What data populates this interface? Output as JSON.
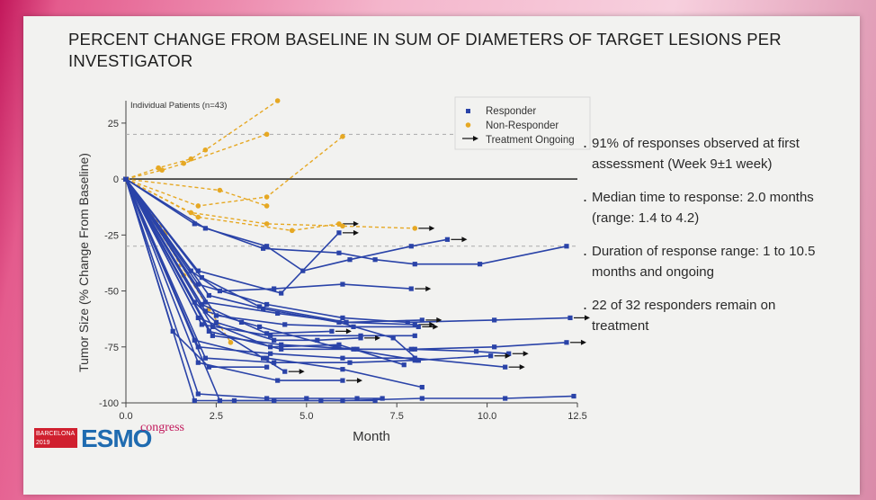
{
  "slide": {
    "title": "PERCENT CHANGE FROM BASELINE IN SUM OF DIAMETERS OF TARGET LESIONS PER INVESTIGATOR",
    "bullets": [
      "91% of responses observed at first assessment (Week 9±1 week)",
      "Median time to response: 2.0 months (range: 1.4 to 4.2)",
      "Duration of response range: 1 to 10.5 months and ongoing",
      "22 of 32 responders remain on treatment"
    ],
    "logo": {
      "city": "BARCELONA",
      "year": "2019",
      "brand": "ESMO",
      "suffix": "congress"
    }
  },
  "colors": {
    "responder": "#2a43a8",
    "non_responder": "#e6a823",
    "reference": "#111111",
    "dashed": "#aaaaaa"
  },
  "chart_data": {
    "type": "line",
    "title": "PERCENT CHANGE FROM BASELINE IN SUM OF DIAMETERS OF TARGET LESIONS PER INVESTIGATOR",
    "annotation": "Individual Patients (n=43)",
    "xlabel": "Month",
    "ylabel": "Tumor Size (% Change From Baseline)",
    "xlim": [
      0,
      12.5
    ],
    "ylim": [
      -100,
      35
    ],
    "xticks": [
      "0.0",
      "2.5",
      "5.0",
      "7.5",
      "10.0",
      "12.5"
    ],
    "yticks": [
      "25",
      "0",
      "-25",
      "-50",
      "-75",
      "-100"
    ],
    "reference_lines": [
      {
        "y": 0,
        "style": "solid"
      },
      {
        "y": 20,
        "style": "dashed"
      },
      {
        "y": -30,
        "style": "dashed"
      }
    ],
    "legend": {
      "position": "top-right",
      "entries": [
        "Responder",
        "Non-Responder",
        "Treatment Ongoing"
      ]
    },
    "series": [
      {
        "group": "non-responder",
        "x": [
          0,
          0.9,
          1.8,
          2.2,
          4.2
        ],
        "y": [
          0,
          5,
          9,
          13,
          35
        ],
        "ongoing": false
      },
      {
        "group": "non-responder",
        "x": [
          0,
          1.0,
          1.6,
          3.9
        ],
        "y": [
          0,
          4,
          7,
          20
        ],
        "ongoing": false
      },
      {
        "group": "non-responder",
        "x": [
          0,
          2.0,
          3.9,
          6.0
        ],
        "y": [
          0,
          -12,
          -8,
          19
        ],
        "ongoing": false
      },
      {
        "group": "non-responder",
        "x": [
          0,
          2.6,
          3.9
        ],
        "y": [
          0,
          -5,
          -12
        ],
        "ongoing": false
      },
      {
        "group": "non-responder",
        "x": [
          0,
          2.0,
          4.6,
          5.9
        ],
        "y": [
          0,
          -17,
          -23,
          -20
        ],
        "ongoing": true
      },
      {
        "group": "non-responder",
        "x": [
          0,
          1.8,
          3.9,
          6.0,
          8.0
        ],
        "y": [
          0,
          -15,
          -20,
          -21,
          -22
        ],
        "ongoing": true
      },
      {
        "group": "non-responder",
        "x": [
          0,
          1.1,
          1.6
        ],
        "y": [
          0,
          -24,
          -43
        ],
        "ongoing": false
      },
      {
        "group": "non-responder",
        "x": [
          0,
          2.3,
          2.9
        ],
        "y": [
          0,
          -58,
          -73
        ],
        "ongoing": false
      },
      {
        "group": "responder",
        "x": [
          0,
          1.9,
          3.8,
          5.9,
          6.9,
          8.0,
          9.8,
          12.2
        ],
        "y": [
          0,
          -20,
          -31,
          -33,
          -36,
          -38,
          -38,
          -30
        ],
        "ongoing": false
      },
      {
        "group": "responder",
        "x": [
          0,
          2.2,
          3.9,
          4.9,
          6.2,
          7.9,
          8.9
        ],
        "y": [
          0,
          -22,
          -30,
          -41,
          -36,
          -30,
          -27
        ],
        "ongoing": true
      },
      {
        "group": "responder",
        "x": [
          0,
          2.0,
          4.3,
          5.9
        ],
        "y": [
          0,
          -41,
          -51,
          -24
        ],
        "ongoing": true
      },
      {
        "group": "responder",
        "x": [
          0,
          1.8,
          2.6,
          4.1,
          6.0,
          7.9
        ],
        "y": [
          0,
          -41,
          -50,
          -49,
          -47,
          -49
        ],
        "ongoing": true
      },
      {
        "group": "responder",
        "x": [
          0,
          2.0,
          3.9,
          6.0,
          7.8,
          10.2,
          12.3
        ],
        "y": [
          0,
          -47,
          -56,
          -62,
          -64,
          -63,
          -62
        ],
        "ongoing": true
      },
      {
        "group": "responder",
        "x": [
          0,
          2.2,
          4.2,
          6.1,
          8.0
        ],
        "y": [
          0,
          -55,
          -60,
          -64,
          -65
        ],
        "ongoing": true
      },
      {
        "group": "responder",
        "x": [
          0,
          2.5,
          4.4,
          6.3,
          8.1
        ],
        "y": [
          0,
          -61,
          -65,
          -66,
          -66
        ],
        "ongoing": true
      },
      {
        "group": "responder",
        "x": [
          0,
          2.1,
          4.0,
          6.5,
          8.0
        ],
        "y": [
          0,
          -65,
          -70,
          -70,
          -70
        ],
        "ongoing": false
      },
      {
        "group": "responder",
        "x": [
          0,
          2.4,
          4.3,
          6.4,
          8.0,
          10.2,
          12.2
        ],
        "y": [
          0,
          -70,
          -74,
          -76,
          -76,
          -75,
          -73
        ],
        "ongoing": true
      },
      {
        "group": "responder",
        "x": [
          0,
          2.3,
          4.3,
          6.3,
          7.9,
          9.7,
          10.6
        ],
        "y": [
          0,
          -68,
          -76,
          -76,
          -76,
          -77,
          -78
        ],
        "ongoing": true
      },
      {
        "group": "responder",
        "x": [
          0,
          2.0,
          4.0,
          6.0,
          8.0,
          10.5
        ],
        "y": [
          0,
          -75,
          -78,
          -80,
          -80,
          -84
        ],
        "ongoing": true
      },
      {
        "group": "responder",
        "x": [
          0,
          2.2,
          4.1,
          6.2,
          8.0,
          10.1
        ],
        "y": [
          0,
          -80,
          -82,
          -82,
          -81,
          -79
        ],
        "ongoing": true
      },
      {
        "group": "responder",
        "x": [
          0,
          2.0,
          4.2,
          6.0
        ],
        "y": [
          0,
          -82,
          -90,
          -90
        ],
        "ongoing": true
      },
      {
        "group": "responder",
        "x": [
          0,
          1.9,
          3.9,
          6.0,
          8.2
        ],
        "y": [
          0,
          -72,
          -80,
          -85,
          -93
        ],
        "ongoing": false
      },
      {
        "group": "responder",
        "x": [
          0,
          2.0,
          3.9,
          5.0,
          6.4,
          7.1
        ],
        "y": [
          0,
          -96,
          -98,
          -98,
          -98,
          -98
        ],
        "ongoing": false
      },
      {
        "group": "responder",
        "x": [
          0,
          1.9,
          3.0,
          4.1,
          6.0,
          8.2,
          10.5,
          12.4
        ],
        "y": [
          0,
          -99,
          -99,
          -99,
          -99,
          -98,
          -98,
          -97
        ],
        "ongoing": false
      },
      {
        "group": "responder",
        "x": [
          0,
          2.6,
          4.1,
          5.4,
          6.9
        ],
        "y": [
          0,
          -99,
          -99,
          -99,
          -99
        ],
        "ongoing": false
      },
      {
        "group": "responder",
        "x": [
          0,
          1.9,
          2.5,
          4.1,
          5.3,
          6.5
        ],
        "y": [
          0,
          -55,
          -64,
          -72,
          -72,
          -71
        ],
        "ongoing": true
      },
      {
        "group": "responder",
        "x": [
          0,
          2.4,
          3.8,
          4.4
        ],
        "y": [
          0,
          -66,
          -80,
          -86
        ],
        "ongoing": true
      },
      {
        "group": "responder",
        "x": [
          0,
          2.2,
          3.7,
          5.8,
          8.1
        ],
        "y": [
          0,
          -59,
          -66,
          -75,
          -81
        ],
        "ongoing": false
      },
      {
        "group": "responder",
        "x": [
          0,
          2.0,
          4.0,
          5.9,
          7.7
        ],
        "y": [
          0,
          -62,
          -75,
          -74,
          -83
        ],
        "ongoing": false
      },
      {
        "group": "responder",
        "x": [
          0,
          2.1,
          3.2,
          3.9,
          5.7
        ],
        "y": [
          0,
          -56,
          -64,
          -69,
          -68
        ],
        "ongoing": true
      },
      {
        "group": "responder",
        "x": [
          0,
          1.3,
          2.3,
          3.9
        ],
        "y": [
          0,
          -68,
          -84,
          -84
        ],
        "ongoing": false
      },
      {
        "group": "responder",
        "x": [
          0,
          2.3,
          3.8,
          5.9,
          7.4,
          8.1
        ],
        "y": [
          0,
          -52,
          -58,
          -64,
          -71,
          -81
        ],
        "ongoing": false
      },
      {
        "group": "responder",
        "x": [
          0,
          2.1,
          3.7,
          6.1,
          8.2
        ],
        "y": [
          0,
          -44,
          -57,
          -64,
          -63
        ],
        "ongoing": true
      }
    ]
  }
}
